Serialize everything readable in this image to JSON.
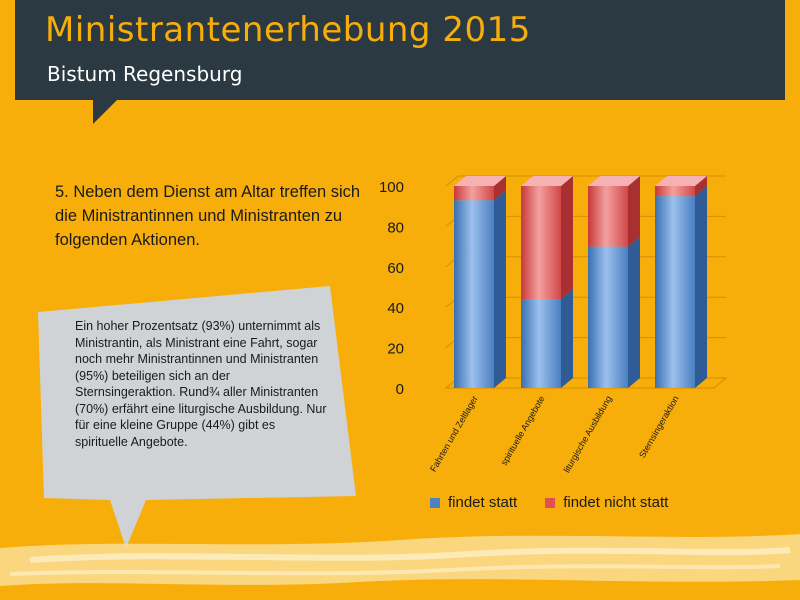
{
  "header": {
    "title": "Ministrantenerhebung 2015",
    "subtitle": "Bistum Regensburg"
  },
  "question": "5. Neben dem Dienst am Altar treffen sich die Ministrantinnen und Ministranten zu folgenden Aktionen.",
  "callout": "Ein hoher Prozentsatz (93%) unternimmt als Ministrantin, als Ministrant eine Fahrt, sogar noch mehr Ministrantinnen und Ministranten (95%) beteiligen sich an der Sternsingeraktion. Rund¾ aller Ministranten (70%) erfährt eine liturgische Ausbildung. Nur für eine kleine Gruppe (44%) gibt es spirituelle Angebote.",
  "colors": {
    "background": "#f7ae0a",
    "header": "#2b3942",
    "findet_statt": "#4f81bd",
    "findet_nicht_statt": "#e05252"
  },
  "chart_data": {
    "type": "bar",
    "stacked": true,
    "categories": [
      "Fahrten und Zeltlager",
      "spirituelle Angebote",
      "liturgische Ausbildung",
      "Sternsingeraktion"
    ],
    "series": [
      {
        "name": "findet statt",
        "values": [
          93,
          44,
          70,
          95
        ]
      },
      {
        "name": "findet nicht statt",
        "values": [
          7,
          56,
          30,
          5
        ]
      }
    ],
    "yticks": [
      "0",
      "20",
      "40",
      "60",
      "80",
      "100"
    ],
    "ylim": [
      0,
      100
    ],
    "grid": true,
    "legend": "bottom"
  }
}
